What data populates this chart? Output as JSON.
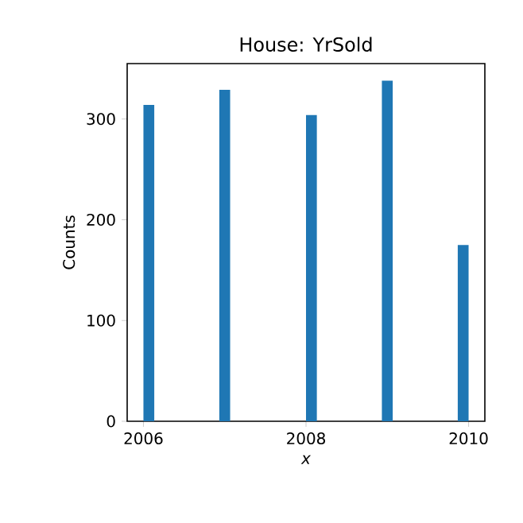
{
  "chart_data": {
    "type": "histogram",
    "title": "House: YrSold",
    "xlabel": "x",
    "ylabel": "Counts",
    "bins": [
      2006,
      2006.1333,
      2006.2667,
      2006.4,
      2006.5333,
      2006.6667,
      2006.8,
      2006.9333,
      2007.0667,
      2007.2,
      2007.3333,
      2007.4667,
      2007.6,
      2007.7333,
      2007.8667,
      2008,
      2008.1333,
      2008.2667,
      2008.4,
      2008.5333,
      2008.6667,
      2008.8,
      2008.9333,
      2009.0667,
      2009.2,
      2009.3333,
      2009.4667,
      2009.6,
      2009.7333,
      2009.8667,
      2010
    ],
    "values": [
      314,
      0,
      0,
      0,
      0,
      0,
      0,
      329,
      0,
      0,
      0,
      0,
      0,
      0,
      0,
      304,
      0,
      0,
      0,
      0,
      0,
      0,
      338,
      0,
      0,
      0,
      0,
      0,
      0,
      175
    ],
    "color": "#1f77b4",
    "xlim": [
      2005.8,
      2010.2
    ],
    "ylim": [
      0,
      355
    ],
    "xticks": [
      2006,
      2008,
      2010
    ],
    "yticks": [
      0,
      100,
      200,
      300
    ]
  }
}
